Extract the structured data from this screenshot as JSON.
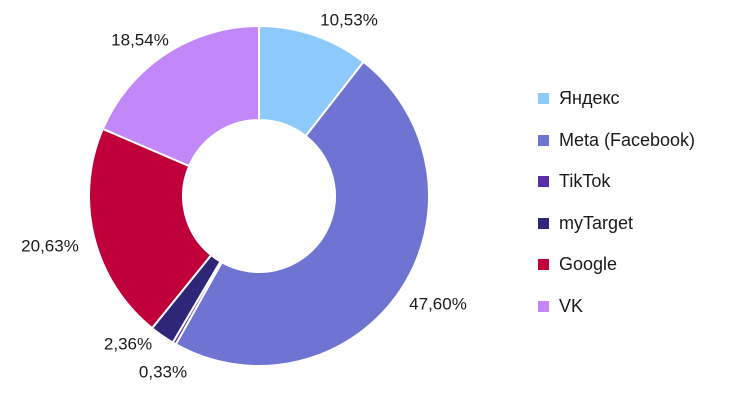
{
  "chart_data": {
    "type": "pie",
    "donut": true,
    "categories": [
      "Яндекс",
      "Meta (Facebook)",
      "TikTok",
      "myTarget",
      "Google",
      "VK"
    ],
    "values": [
      10.53,
      47.6,
      0.33,
      2.36,
      20.63,
      18.54
    ],
    "labels": [
      "10,53%",
      "47,60%",
      "0,33%",
      "2,36%",
      "20,63%",
      "18,54%"
    ],
    "colors": [
      "#8ec9fb",
      "#6f73d2",
      "#5a2ea6",
      "#2e2677",
      "#c0003a",
      "#c388f7"
    ],
    "legend_position": "right"
  }
}
